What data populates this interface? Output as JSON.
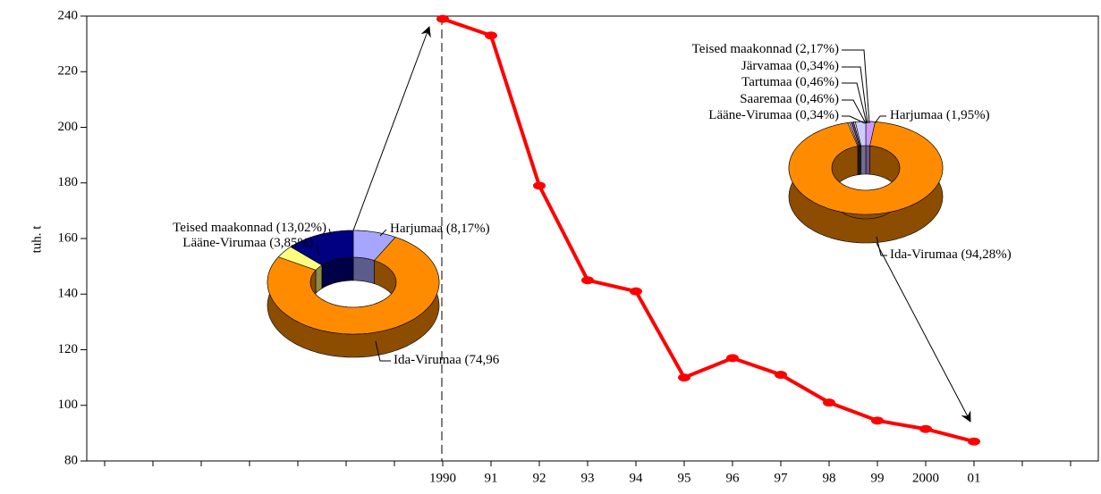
{
  "chart_data": [
    {
      "type": "line",
      "y_label": "tuh. t",
      "categories": [
        null,
        null,
        null,
        null,
        null,
        null,
        null,
        "1990",
        "91",
        "92",
        "93",
        "94",
        "95",
        "96",
        "97",
        "98",
        "99",
        "2000",
        "01",
        null,
        null
      ],
      "series": [
        {
          "color": "#ff0000",
          "values": [
            null,
            null,
            null,
            null,
            null,
            null,
            null,
            239,
            233,
            179,
            145,
            141,
            110,
            117,
            111,
            101,
            94.5,
            91.5,
            87,
            null,
            null
          ]
        }
      ],
      "ylim": [
        80,
        240
      ],
      "yticks": [
        80,
        100,
        120,
        140,
        160,
        180,
        200,
        220,
        240
      ]
    },
    {
      "type": "pie",
      "categories": [
        "Harjumaa",
        "Ida-Virumaa",
        "Lääne-Virumaa",
        "Teised maakonnad"
      ],
      "values": [
        8.17,
        74.96,
        3.85,
        13.02
      ],
      "value_labels": [
        "(8,17%)",
        "(74,96",
        "(3,85%)",
        "(13,02%)"
      ],
      "colors": [
        "#a6a6ff",
        "#ff8c00",
        "#ffff80",
        "#000080"
      ]
    },
    {
      "type": "pie",
      "categories": [
        "Harjumaa",
        "Ida-Virumaa",
        "Lääne-Virumaa",
        "Saaremaa",
        "Tartumaa",
        "Järvamaa",
        "Teised maakonnad"
      ],
      "values": [
        1.95,
        94.28,
        0.34,
        0.46,
        0.46,
        0.34,
        2.17
      ],
      "value_labels": [
        "(1,95%)",
        "(94,28%)",
        "(0,34%)",
        "(0,46%)",
        "(0,46%)",
        "(0,34%)",
        "(2,17%)"
      ],
      "colors": [
        "#cc99ff",
        "#ff8c00",
        "#ffff99",
        "#9999ff",
        "#993366",
        "#ccffff",
        "#ccccff"
      ]
    }
  ]
}
